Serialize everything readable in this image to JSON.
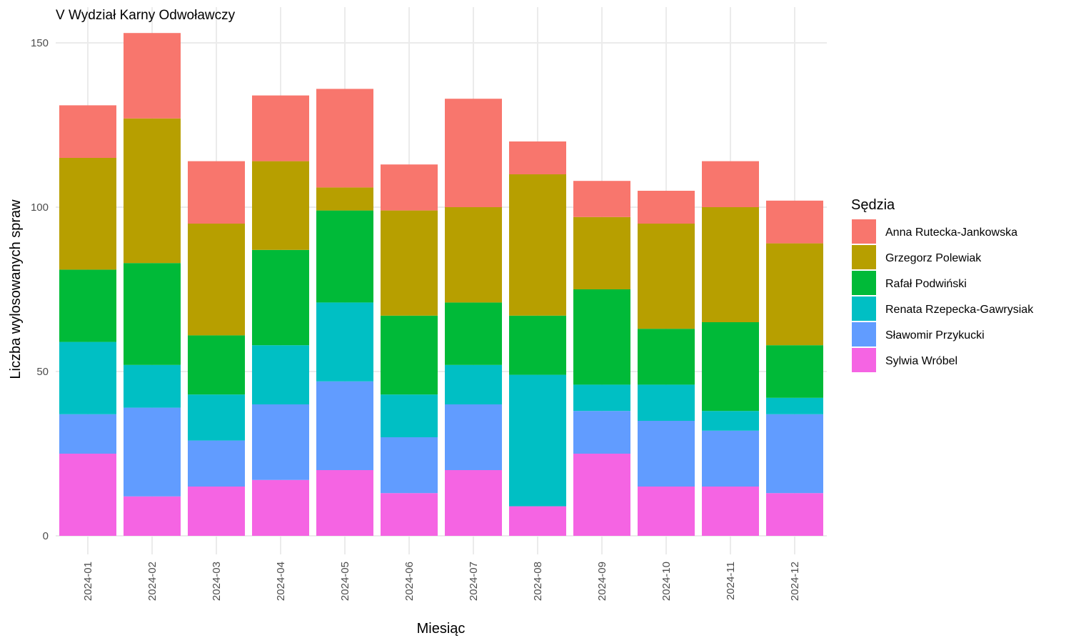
{
  "chart_data": {
    "type": "bar",
    "stacked": true,
    "title": "V Wydział Karny Odwoławczy",
    "xlabel": "Miesiąc",
    "ylabel": "Liczba wylosowanych spraw",
    "ylim": [
      0,
      160
    ],
    "yticks": [
      0,
      50,
      100,
      150
    ],
    "grid": true,
    "legend": {
      "title": "Sędzia",
      "position": "right"
    },
    "categories": [
      "2024-01",
      "2024-02",
      "2024-03",
      "2024-04",
      "2024-05",
      "2024-06",
      "2024-07",
      "2024-08",
      "2024-09",
      "2024-10",
      "2024-11",
      "2024-12"
    ],
    "series": [
      {
        "name": "Sylwia Wróbel",
        "color": "#F564E3",
        "values": [
          25,
          12,
          15,
          17,
          20,
          13,
          20,
          9,
          25,
          15,
          15,
          13
        ]
      },
      {
        "name": "Sławomir Przykucki",
        "color": "#619CFF",
        "values": [
          12,
          27,
          14,
          23,
          27,
          17,
          20,
          0,
          13,
          20,
          17,
          24
        ]
      },
      {
        "name": "Renata Rzepecka-Gawrysiak",
        "color": "#00BFC4",
        "values": [
          22,
          13,
          14,
          18,
          24,
          13,
          12,
          40,
          8,
          11,
          6,
          5
        ]
      },
      {
        "name": "Rafał Podwiński",
        "color": "#00BA38",
        "values": [
          22,
          31,
          18,
          29,
          28,
          24,
          19,
          18,
          29,
          17,
          27,
          16
        ]
      },
      {
        "name": "Grzegorz Polewiak",
        "color": "#B79F00",
        "values": [
          34,
          44,
          34,
          27,
          7,
          32,
          29,
          43,
          22,
          32,
          35,
          31
        ]
      },
      {
        "name": "Anna Rutecka-Jankowska",
        "color": "#F8766D",
        "values": [
          16,
          26,
          19,
          20,
          30,
          14,
          33,
          10,
          11,
          10,
          14,
          13
        ]
      }
    ],
    "legend_order": [
      "Anna Rutecka-Jankowska",
      "Grzegorz Polewiak",
      "Rafał Podwiński",
      "Renata Rzepecka-Gawrysiak",
      "Sławomir Przykucki",
      "Sylwia Wróbel"
    ]
  }
}
